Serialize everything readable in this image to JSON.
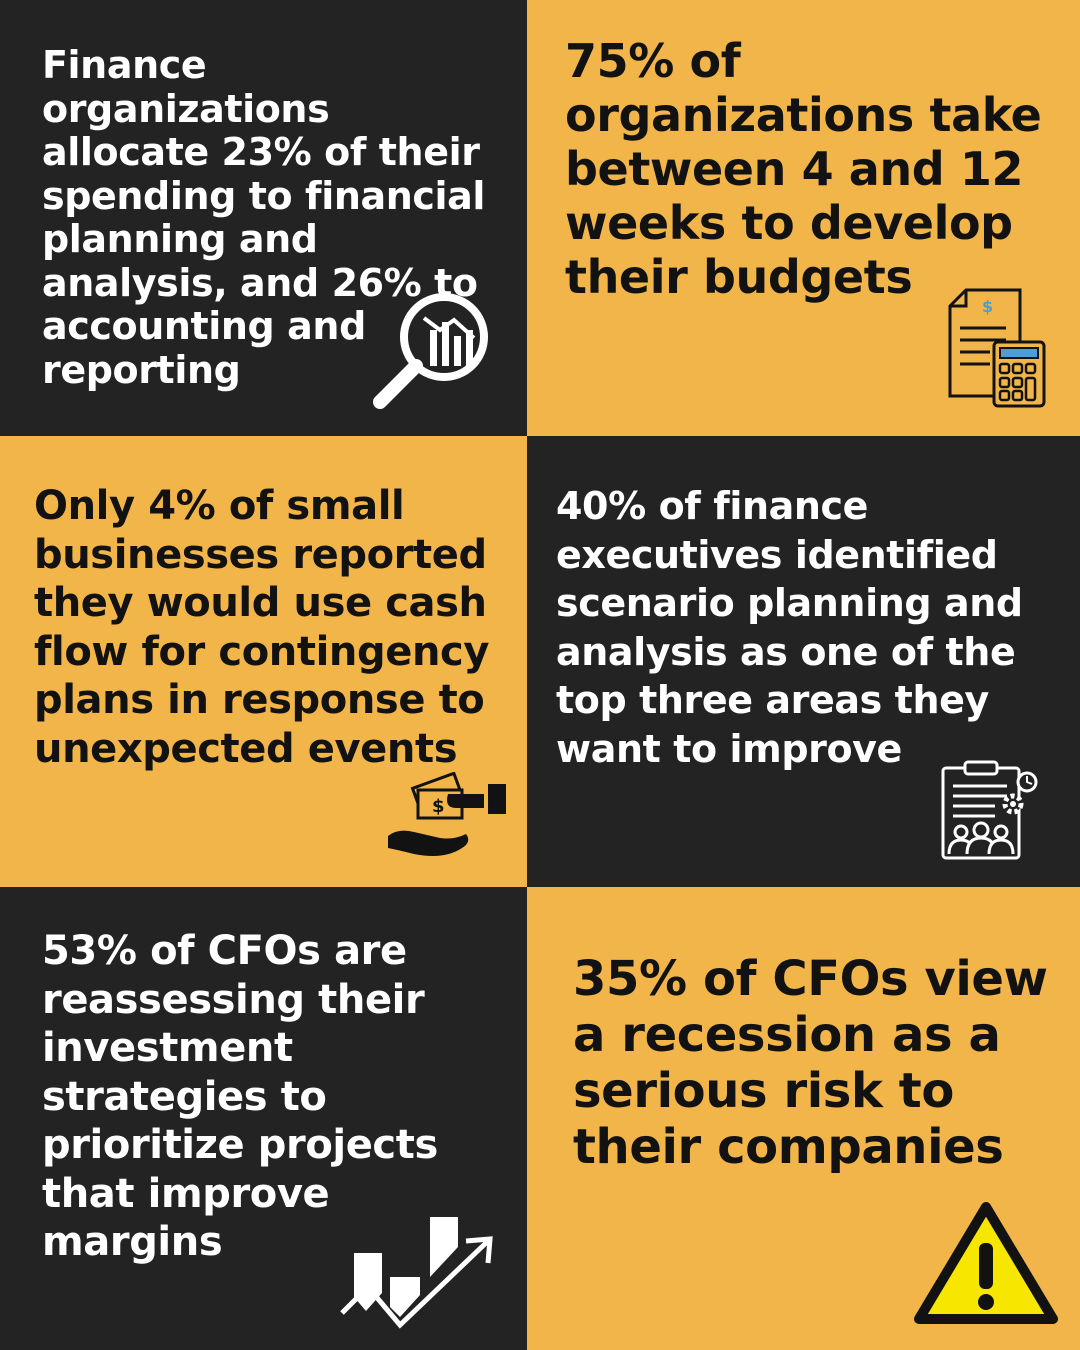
{
  "colors": {
    "dark": "#232323",
    "gold": "#f1b54a",
    "white": "#ffffff",
    "black": "#121212",
    "accent_blue": "#4a9fd8",
    "warning_yellow": "#f7e600"
  },
  "stats": [
    {
      "text": "Finance organizations allocate 23% of their spending to financial planning and analysis, and 26% to accounting and reporting",
      "icon": "magnifier-chart-icon"
    },
    {
      "text": "75% of organizations take between 4 and 12 weeks to develop their budgets",
      "icon": "budget-calculator-icon"
    },
    {
      "text": "Only 4% of small businesses reported they would use cash flow for contingency plans in response to unexpected events",
      "icon": "cash-hand-icon"
    },
    {
      "text": "40% of finance executives identified scenario planning and analysis as one of the top three areas they want to improve",
      "icon": "planning-clipboard-icon"
    },
    {
      "text": "53% of CFOs are reassessing their investment strategies to prioritize projects that improve margins",
      "icon": "growth-chart-icon"
    },
    {
      "text": "35% of CFOs view a recession as a serious risk to their companies",
      "icon": "warning-icon"
    }
  ]
}
